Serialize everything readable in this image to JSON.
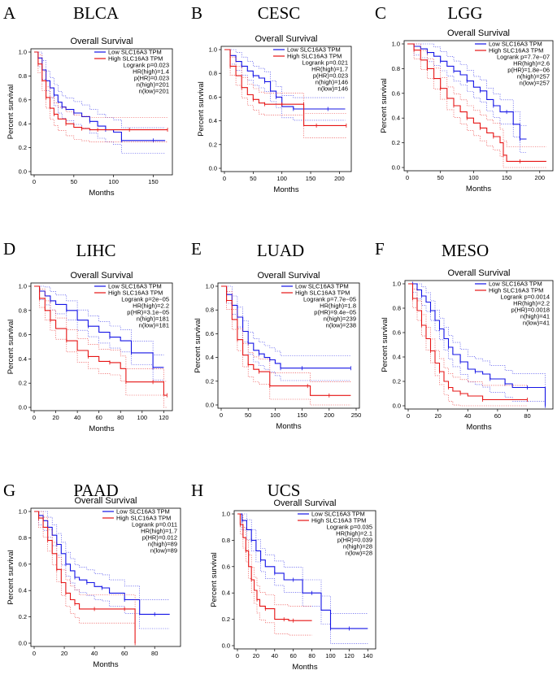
{
  "figure": {
    "plot_title": "Overall Survival",
    "xlabel": "Months",
    "ylabel": "Percent survival",
    "legend": [
      "Low SLC16A3 TPM",
      "High SLC16A3 TPM"
    ],
    "colors": {
      "low": "#1414e6",
      "high": "#e61414"
    }
  },
  "chart_data": [
    {
      "type": "line",
      "panel": "A",
      "cancer": "BLCA",
      "xlim": [
        0,
        170
      ],
      "ylim": [
        0,
        1
      ],
      "xticks": [
        0,
        50,
        100,
        150
      ],
      "yticks": [
        0.0,
        0.2,
        0.4,
        0.6,
        0.8,
        1.0
      ],
      "stats": [
        "Logrank p=0.023",
        "HR(high)=1.4",
        "p(HR)=0.023",
        "n(high)=201",
        "n(low)=201"
      ],
      "series": [
        {
          "name": "Low SLC16A3 TPM",
          "x": [
            0,
            5,
            10,
            15,
            20,
            25,
            30,
            35,
            40,
            50,
            60,
            70,
            80,
            90,
            100,
            110,
            130,
            150,
            165
          ],
          "y": [
            1.0,
            0.95,
            0.85,
            0.76,
            0.7,
            0.64,
            0.58,
            0.54,
            0.52,
            0.49,
            0.46,
            0.42,
            0.38,
            0.35,
            0.33,
            0.26,
            0.26,
            0.26,
            0.26
          ]
        },
        {
          "name": "High SLC16A3 TPM",
          "x": [
            0,
            5,
            10,
            15,
            20,
            25,
            30,
            40,
            50,
            60,
            70,
            80,
            100,
            120,
            150,
            168
          ],
          "y": [
            1.0,
            0.9,
            0.76,
            0.62,
            0.53,
            0.48,
            0.44,
            0.4,
            0.37,
            0.36,
            0.35,
            0.35,
            0.35,
            0.35,
            0.35,
            0.35
          ]
        }
      ]
    },
    {
      "type": "line",
      "panel": "B",
      "cancer": "CESC",
      "xlim": [
        0,
        215
      ],
      "ylim": [
        0,
        1
      ],
      "xticks": [
        0,
        50,
        100,
        150,
        200
      ],
      "yticks": [
        0.0,
        0.2,
        0.4,
        0.6,
        0.8,
        1.0
      ],
      "stats": [
        "Logrank p=0.021",
        "HR(high)=1.7",
        "p(HR)=0.023",
        "n(high)=146",
        "n(low)=146"
      ],
      "series": [
        {
          "name": "Low SLC16A3 TPM",
          "x": [
            0,
            10,
            20,
            30,
            40,
            50,
            60,
            70,
            80,
            90,
            100,
            120,
            150,
            180,
            210
          ],
          "y": [
            1.0,
            0.95,
            0.9,
            0.86,
            0.82,
            0.78,
            0.76,
            0.73,
            0.65,
            0.6,
            0.52,
            0.5,
            0.5,
            0.5,
            0.5
          ]
        },
        {
          "name": "High SLC16A3 TPM",
          "x": [
            0,
            10,
            20,
            30,
            40,
            50,
            60,
            70,
            80,
            100,
            120,
            138,
            138,
            160,
            200,
            212
          ],
          "y": [
            1.0,
            0.86,
            0.78,
            0.68,
            0.62,
            0.58,
            0.55,
            0.54,
            0.54,
            0.54,
            0.54,
            0.54,
            0.36,
            0.36,
            0.36,
            0.36
          ]
        }
      ]
    },
    {
      "type": "line",
      "panel": "C",
      "cancer": "LGG",
      "xlim": [
        0,
        215
      ],
      "ylim": [
        0,
        1
      ],
      "xticks": [
        0,
        50,
        100,
        150,
        200
      ],
      "yticks": [
        0.0,
        0.2,
        0.4,
        0.6,
        0.8,
        1.0
      ],
      "stats": [
        "Logrank p=7.7e−07",
        "HR(high)=2.6",
        "p(HR)=1.8e−06",
        "n(high)=257",
        "n(low)=257"
      ],
      "series": [
        {
          "name": "Low SLC16A3 TPM",
          "x": [
            0,
            10,
            20,
            30,
            40,
            50,
            60,
            70,
            80,
            90,
            100,
            110,
            120,
            130,
            140,
            150,
            160,
            170,
            180
          ],
          "y": [
            1.0,
            0.98,
            0.96,
            0.93,
            0.9,
            0.86,
            0.82,
            0.78,
            0.75,
            0.7,
            0.65,
            0.62,
            0.55,
            0.5,
            0.45,
            0.45,
            0.35,
            0.23,
            0.23
          ]
        },
        {
          "name": "High SLC16A3 TPM",
          "x": [
            0,
            10,
            20,
            30,
            40,
            50,
            60,
            70,
            80,
            90,
            100,
            110,
            120,
            130,
            140,
            145,
            150,
            170,
            210
          ],
          "y": [
            1.0,
            0.95,
            0.87,
            0.8,
            0.72,
            0.64,
            0.56,
            0.5,
            0.45,
            0.4,
            0.36,
            0.32,
            0.28,
            0.25,
            0.2,
            0.1,
            0.05,
            0.05,
            0.05
          ]
        }
      ]
    },
    {
      "type": "line",
      "panel": "D",
      "cancer": "LIHC",
      "xlim": [
        0,
        125
      ],
      "ylim": [
        0,
        1
      ],
      "xticks": [
        0,
        20,
        40,
        60,
        80,
        100,
        120
      ],
      "yticks": [
        0.0,
        0.2,
        0.4,
        0.6,
        0.8,
        1.0
      ],
      "stats": [
        "Logrank p=2e−05",
        "HR(high)=2.2",
        "p(HR)=3.1e−05",
        "n(high)=181",
        "n(low)=181"
      ],
      "series": [
        {
          "name": "Low SLC16A3 TPM",
          "x": [
            0,
            5,
            10,
            15,
            20,
            30,
            40,
            50,
            60,
            70,
            80,
            90,
            100,
            110,
            120
          ],
          "y": [
            1.0,
            0.96,
            0.92,
            0.88,
            0.85,
            0.8,
            0.72,
            0.67,
            0.62,
            0.58,
            0.55,
            0.45,
            0.45,
            0.33,
            0.33
          ]
        },
        {
          "name": "High SLC16A3 TPM",
          "x": [
            0,
            5,
            10,
            15,
            20,
            30,
            40,
            50,
            60,
            70,
            80,
            85,
            100,
            110,
            120,
            123
          ],
          "y": [
            1.0,
            0.9,
            0.8,
            0.72,
            0.65,
            0.55,
            0.47,
            0.42,
            0.38,
            0.37,
            0.32,
            0.21,
            0.21,
            0.21,
            0.1,
            0.1
          ]
        }
      ]
    },
    {
      "type": "line",
      "panel": "E",
      "cancer": "LUAD",
      "xlim": [
        0,
        250
      ],
      "ylim": [
        0,
        1
      ],
      "xticks": [
        0,
        50,
        100,
        150,
        200,
        250
      ],
      "yticks": [
        0.0,
        0.2,
        0.4,
        0.6,
        0.8,
        1.0
      ],
      "stats": [
        "Logrank p=7.7e−05",
        "HR(high)=1.8",
        "p(HR)=9.4e−05",
        "n(high)=239",
        "n(low)=238"
      ],
      "series": [
        {
          "name": "Low SLC16A3 TPM",
          "x": [
            0,
            10,
            20,
            30,
            40,
            50,
            60,
            70,
            80,
            90,
            100,
            110,
            130,
            150,
            200,
            240
          ],
          "y": [
            1.0,
            0.93,
            0.84,
            0.74,
            0.62,
            0.52,
            0.46,
            0.43,
            0.4,
            0.38,
            0.35,
            0.31,
            0.31,
            0.31,
            0.31,
            0.31
          ]
        },
        {
          "name": "High SLC16A3 TPM",
          "x": [
            0,
            10,
            20,
            30,
            40,
            50,
            60,
            70,
            80,
            90,
            120,
            160,
            165,
            200,
            240
          ],
          "y": [
            1.0,
            0.88,
            0.72,
            0.55,
            0.42,
            0.34,
            0.3,
            0.28,
            0.28,
            0.16,
            0.16,
            0.16,
            0.08,
            0.08,
            0.08
          ]
        }
      ]
    },
    {
      "type": "line",
      "panel": "F",
      "cancer": "MESO",
      "xlim": [
        0,
        95
      ],
      "ylim": [
        0,
        1
      ],
      "xticks": [
        0,
        20,
        40,
        60,
        80
      ],
      "yticks": [
        0.0,
        0.2,
        0.4,
        0.6,
        0.8,
        1.0
      ],
      "stats": [
        "Logrank p=0.0014",
        "HR(high)=2.2",
        "p(HR)=0.0018",
        "n(high)=41",
        "n(low)=41"
      ],
      "series": [
        {
          "name": "Low SLC16A3 TPM",
          "x": [
            0,
            3,
            6,
            9,
            12,
            15,
            18,
            21,
            24,
            27,
            30,
            35,
            40,
            45,
            50,
            55,
            60,
            65,
            70,
            80,
            92,
            92
          ],
          "y": [
            1.0,
            1.0,
            0.95,
            0.9,
            0.85,
            0.78,
            0.7,
            0.63,
            0.55,
            0.48,
            0.42,
            0.36,
            0.3,
            0.28,
            0.26,
            0.22,
            0.22,
            0.18,
            0.15,
            0.15,
            0.15,
            0.0
          ]
        },
        {
          "name": "High SLC16A3 TPM",
          "x": [
            0,
            3,
            6,
            9,
            12,
            15,
            18,
            21,
            24,
            27,
            30,
            35,
            40,
            50,
            60,
            80
          ],
          "y": [
            1.0,
            0.88,
            0.78,
            0.66,
            0.55,
            0.45,
            0.35,
            0.28,
            0.2,
            0.15,
            0.12,
            0.1,
            0.08,
            0.05,
            0.05,
            0.05
          ]
        }
      ]
    },
    {
      "type": "line",
      "panel": "G",
      "cancer": "PAAD",
      "xlim": [
        0,
        95
      ],
      "ylim": [
        0,
        1
      ],
      "xticks": [
        0,
        20,
        40,
        60,
        80
      ],
      "yticks": [
        0.0,
        0.2,
        0.4,
        0.6,
        0.8,
        1.0
      ],
      "stats": [
        "Logrank p=0.011",
        "HR(high)=1.7",
        "p(HR)=0.012",
        "n(high)=89",
        "n(low)=89"
      ],
      "series": [
        {
          "name": "Low SLC16A3 TPM",
          "x": [
            0,
            3,
            6,
            9,
            12,
            15,
            18,
            21,
            24,
            27,
            30,
            35,
            40,
            45,
            50,
            60,
            70,
            80,
            90
          ],
          "y": [
            1.0,
            0.97,
            0.93,
            0.88,
            0.82,
            0.75,
            0.68,
            0.6,
            0.55,
            0.5,
            0.48,
            0.46,
            0.43,
            0.42,
            0.38,
            0.33,
            0.22,
            0.22,
            0.22
          ]
        },
        {
          "name": "High SLC16A3 TPM",
          "x": [
            0,
            3,
            6,
            9,
            12,
            15,
            18,
            21,
            24,
            27,
            30,
            40,
            50,
            60,
            67,
            67
          ],
          "y": [
            1.0,
            0.95,
            0.88,
            0.78,
            0.68,
            0.56,
            0.46,
            0.38,
            0.33,
            0.3,
            0.26,
            0.26,
            0.26,
            0.26,
            0.26,
            0.0
          ]
        }
      ]
    },
    {
      "type": "line",
      "panel": "H",
      "cancer": "UCS",
      "xlim": [
        0,
        145
      ],
      "ylim": [
        0,
        1
      ],
      "xticks": [
        0,
        20,
        40,
        60,
        80,
        100,
        120,
        140
      ],
      "yticks": [
        0.0,
        0.2,
        0.4,
        0.6,
        0.8,
        1.0
      ],
      "stats": [
        "Logrank p=0.035",
        "HR(high)=2.1",
        "p(HR)=0.039",
        "n(high)=28",
        "n(low)=28"
      ],
      "series": [
        {
          "name": "Low SLC16A3 TPM",
          "x": [
            0,
            5,
            10,
            15,
            20,
            25,
            30,
            40,
            50,
            60,
            70,
            80,
            90,
            100,
            110,
            120,
            140
          ],
          "y": [
            1.0,
            0.95,
            0.88,
            0.8,
            0.72,
            0.65,
            0.6,
            0.55,
            0.5,
            0.5,
            0.4,
            0.4,
            0.27,
            0.13,
            0.13,
            0.13,
            0.13
          ]
        },
        {
          "name": "High SLC16A3 TPM",
          "x": [
            0,
            3,
            6,
            9,
            12,
            15,
            18,
            21,
            24,
            30,
            40,
            50,
            55,
            60,
            80
          ],
          "y": [
            1.0,
            0.92,
            0.82,
            0.72,
            0.6,
            0.5,
            0.42,
            0.35,
            0.3,
            0.28,
            0.2,
            0.2,
            0.19,
            0.19,
            0.19
          ]
        }
      ]
    }
  ]
}
